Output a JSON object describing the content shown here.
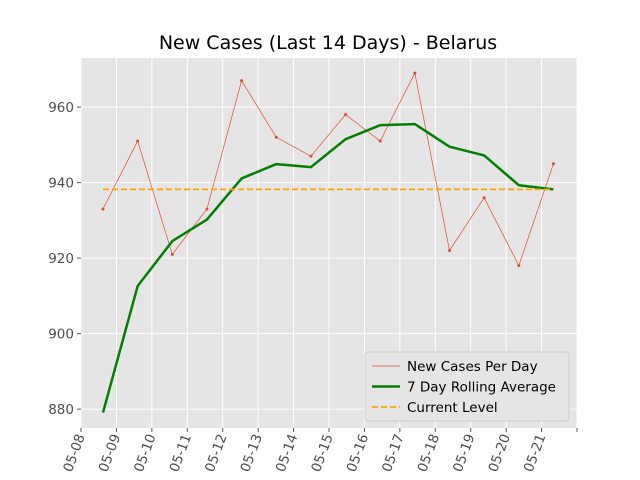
{
  "chart_data": {
    "type": "line",
    "title": "New Cases (Last 14 Days) - Belarus",
    "xlabel": "",
    "ylabel": "",
    "x": [
      "05-08",
      "05-09",
      "05-10",
      "05-11",
      "05-12",
      "05-13",
      "05-14",
      "05-15",
      "05-16",
      "05-17",
      "05-18",
      "05-19",
      "05-20",
      "05-21"
    ],
    "yticks": [
      880,
      900,
      920,
      940,
      960
    ],
    "ylim": [
      875,
      973
    ],
    "grid": true,
    "legend_position": "lower-right",
    "series": [
      {
        "name": "New Cases Per Day",
        "color": "#e24a33",
        "style": "thin line with small point markers",
        "values": [
          933,
          951,
          921,
          933,
          967,
          952,
          947,
          958,
          951,
          969,
          922,
          936,
          918,
          945
        ]
      },
      {
        "name": "7 Day Rolling Average",
        "color": "#008000",
        "style": "thick solid line",
        "values": [
          879.1,
          912.6,
          924.5,
          930.2,
          941.1,
          944.9,
          944.1,
          951.5,
          955.2,
          955.5,
          949.5,
          947.2,
          939.3,
          938.2
        ]
      },
      {
        "name": "Current Level",
        "color": "#ffa500",
        "style": "dashed line",
        "values": [
          938.2,
          938.2,
          938.2,
          938.2,
          938.2,
          938.2,
          938.2,
          938.2,
          938.2,
          938.2,
          938.2,
          938.2,
          938.2,
          938.2
        ]
      }
    ]
  },
  "colors": {
    "plot_background": "#e5e5e5",
    "grid": "#ffffff",
    "tick_text": "#4d4d4d"
  }
}
